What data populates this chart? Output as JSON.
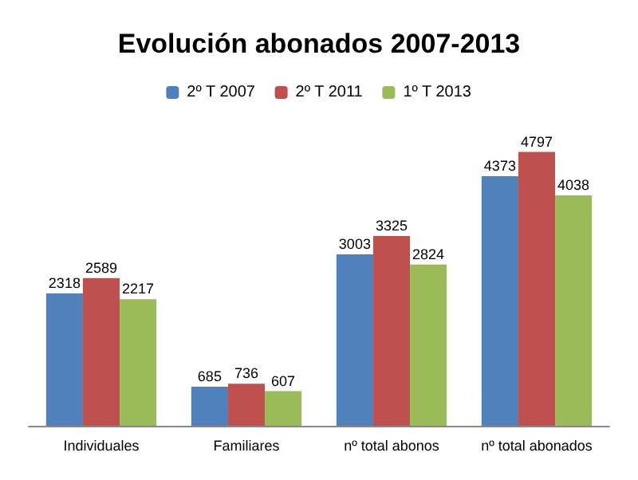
{
  "chart_data": {
    "type": "bar",
    "title": "Evolución abonados 2007-2013",
    "categories": [
      "Individuales",
      "Familiares",
      "nº total abonos",
      "nº total abonados"
    ],
    "series": [
      {
        "name": "2º T 2007",
        "color": "#4f81bd",
        "values": [
          2318,
          685,
          3003,
          4373
        ]
      },
      {
        "name": "2º T 2011",
        "color": "#c0504d",
        "values": [
          2589,
          736,
          3325,
          4797
        ]
      },
      {
        "name": "1º T 2013",
        "color": "#9bbb59",
        "values": [
          2217,
          607,
          2824,
          4038
        ]
      }
    ],
    "data_labels": true,
    "legend": "top"
  }
}
